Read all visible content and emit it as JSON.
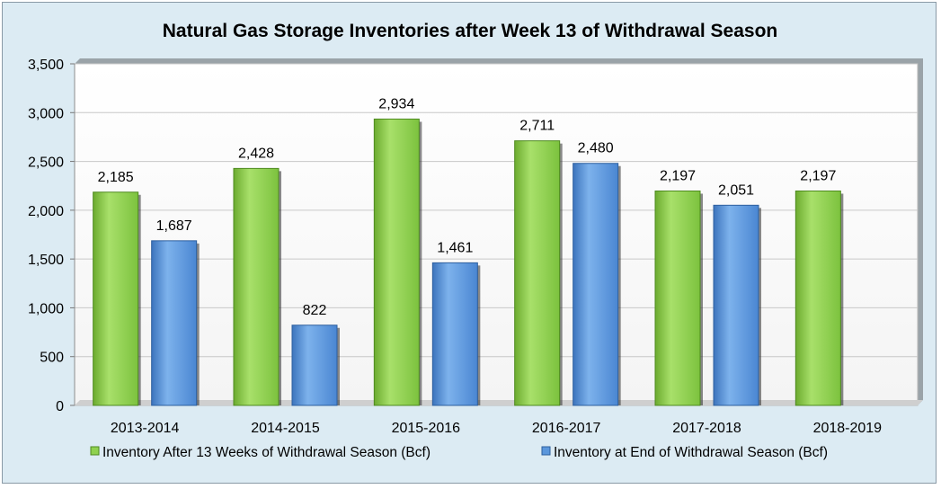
{
  "chart_data": {
    "type": "bar",
    "title": "Natural Gas Storage Inventories after Week 13 of Withdrawal Season",
    "xlabel": "",
    "ylabel": "",
    "categories": [
      "2013-2014",
      "2014-2015",
      "2015-2016",
      "2016-2017",
      "2017-2018",
      "2018-2019"
    ],
    "series": [
      {
        "name": "Inventory After 13 Weeks of Withdrawal Season (Bcf)",
        "color": "#8fd14f",
        "values": [
          2185,
          2428,
          2934,
          2711,
          2197,
          2197
        ],
        "labels": [
          "2,185",
          "2,428",
          "2,934",
          "2,711",
          "2,197",
          "2,197"
        ]
      },
      {
        "name": "Inventory at End of Withdrawal Season (Bcf)",
        "color": "#5b97dc",
        "values": [
          1687,
          822,
          1461,
          2480,
          2051,
          null
        ],
        "labels": [
          "1,687",
          "822",
          "1,461",
          "2,480",
          "2,051",
          ""
        ]
      }
    ],
    "ylim": [
      0,
      3500
    ],
    "yticks": [
      0,
      500,
      1000,
      1500,
      2000,
      2500,
      3000,
      3500
    ],
    "ytick_labels": [
      "0",
      "500",
      "1,000",
      "1,500",
      "2,000",
      "2,500",
      "3,000",
      "3,500"
    ],
    "grid": true,
    "legend_position": "bottom"
  }
}
